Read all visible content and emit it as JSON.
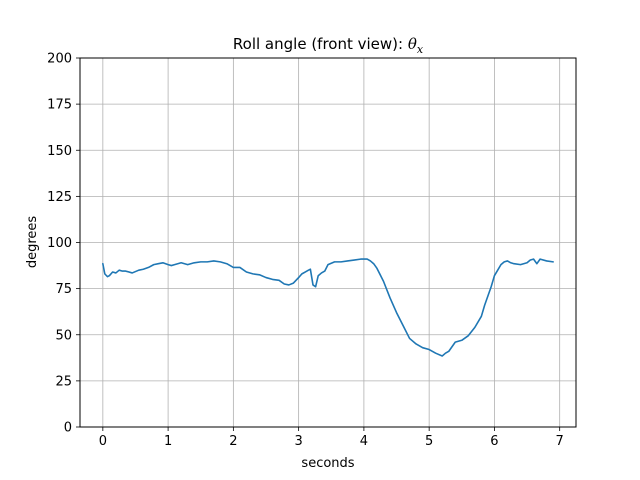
{
  "chart_data": {
    "type": "line",
    "title": "Roll angle (front view): ",
    "title_math": "θ",
    "title_math_sub": "x",
    "xlabel": "seconds",
    "ylabel": "degrees",
    "xlim": [
      -0.35,
      7.25
    ],
    "ylim": [
      0,
      200
    ],
    "xticks": [
      0,
      1,
      2,
      3,
      4,
      5,
      6,
      7
    ],
    "yticks": [
      0,
      25,
      50,
      75,
      100,
      125,
      150,
      175,
      200
    ],
    "grid": true,
    "series": [
      {
        "color": "#1f77b4",
        "x": [
          0.0,
          0.03,
          0.07,
          0.1,
          0.15,
          0.2,
          0.25,
          0.3,
          0.35,
          0.45,
          0.55,
          0.62,
          0.7,
          0.78,
          0.85,
          0.92,
          1.0,
          1.05,
          1.1,
          1.2,
          1.3,
          1.4,
          1.5,
          1.6,
          1.7,
          1.8,
          1.9,
          2.0,
          2.1,
          2.2,
          2.3,
          2.4,
          2.5,
          2.6,
          2.7,
          2.78,
          2.85,
          2.92,
          3.0,
          3.05,
          3.1,
          3.15,
          3.18,
          3.22,
          3.26,
          3.3,
          3.35,
          3.4,
          3.45,
          3.55,
          3.65,
          3.75,
          3.85,
          3.95,
          4.05,
          4.1,
          4.15,
          4.2,
          4.3,
          4.4,
          4.5,
          4.6,
          4.7,
          4.8,
          4.9,
          5.0,
          5.1,
          5.2,
          5.25,
          5.3,
          5.4,
          5.5,
          5.6,
          5.7,
          5.8,
          5.85,
          5.9,
          5.95,
          6.0,
          6.05,
          6.1,
          6.15,
          6.2,
          6.25,
          6.3,
          6.4,
          6.5,
          6.55,
          6.6,
          6.65,
          6.7,
          6.8,
          6.9
        ],
        "y": [
          88.5,
          83,
          81.5,
          82,
          84,
          83.5,
          85,
          84.5,
          84.5,
          83.5,
          85,
          85.5,
          86.5,
          88,
          88.5,
          89,
          88,
          87.5,
          88,
          89,
          88,
          89,
          89.5,
          89.5,
          90,
          89.5,
          88.5,
          86.5,
          86.5,
          84,
          83,
          82.5,
          81,
          80,
          79.5,
          77.5,
          77,
          78,
          81,
          83,
          84,
          85,
          85.5,
          77,
          76,
          82,
          83.5,
          84.5,
          88,
          89.5,
          89.5,
          90,
          90.5,
          91,
          91,
          90,
          88.5,
          86,
          79,
          70,
          62,
          55,
          48,
          45,
          43,
          42,
          40,
          38.5,
          40,
          41,
          46,
          47,
          49.5,
          54,
          60,
          66,
          71,
          76,
          82,
          85,
          88,
          89.5,
          90,
          89,
          88.5,
          88,
          89,
          90.5,
          91,
          88.5,
          91,
          90,
          89.5
        ]
      }
    ]
  }
}
